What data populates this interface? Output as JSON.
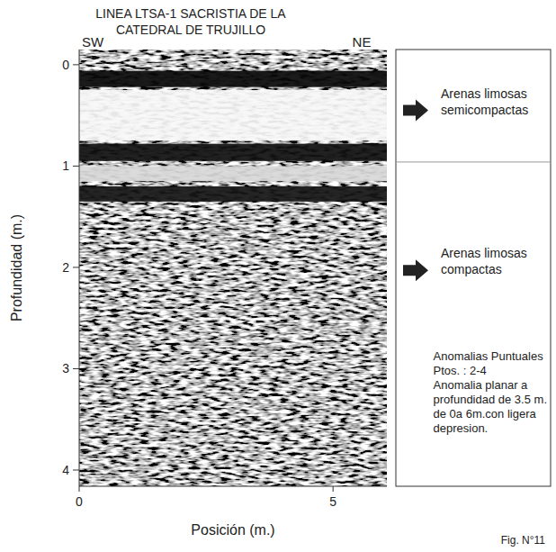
{
  "chart_data": {
    "type": "radargram",
    "title": [
      "LINEA LTSA-1  SACRISTIA DE LA",
      "CATEDRAL DE TRUJILLO"
    ],
    "direction_left": "SW",
    "direction_right": "NE",
    "x_label": "Posición (m.)",
    "y_label": "Profundidad (m.)",
    "xlim": [
      0,
      6.06
    ],
    "ylim": [
      -0.15,
      4.16
    ],
    "xticks": [
      0,
      5
    ],
    "yticks": [
      0,
      1,
      2,
      3,
      4
    ],
    "reflectors": [
      {
        "top": 0.06,
        "bottom": 0.22,
        "color": "#0a0a0a"
      },
      {
        "top": 0.25,
        "bottom": 0.75,
        "color": "#f8f8f8"
      },
      {
        "top": 0.78,
        "bottom": 0.95,
        "color": "#111111"
      },
      {
        "top": 1.0,
        "bottom": 1.15,
        "color": "#d8d8d8"
      },
      {
        "top": 1.2,
        "bottom": 1.35,
        "color": "#151515"
      }
    ],
    "units": [
      {
        "label": [
          "Arenas limosas",
          "semicompactas"
        ],
        "depth": 0.45
      },
      {
        "label": [
          "Arenas limosas",
          "compactas"
        ],
        "depth": 2.03
      }
    ],
    "unit_boundary": 0.96,
    "annotation": [
      "Anomalias Puntuales",
      "Ptos. : 2-4",
      "Anomalia planar a",
      "profundidad de 3.5 m.",
      "de 0a 6m.con ligera",
      "depresion."
    ],
    "figure_label": "Fig. N°11"
  }
}
